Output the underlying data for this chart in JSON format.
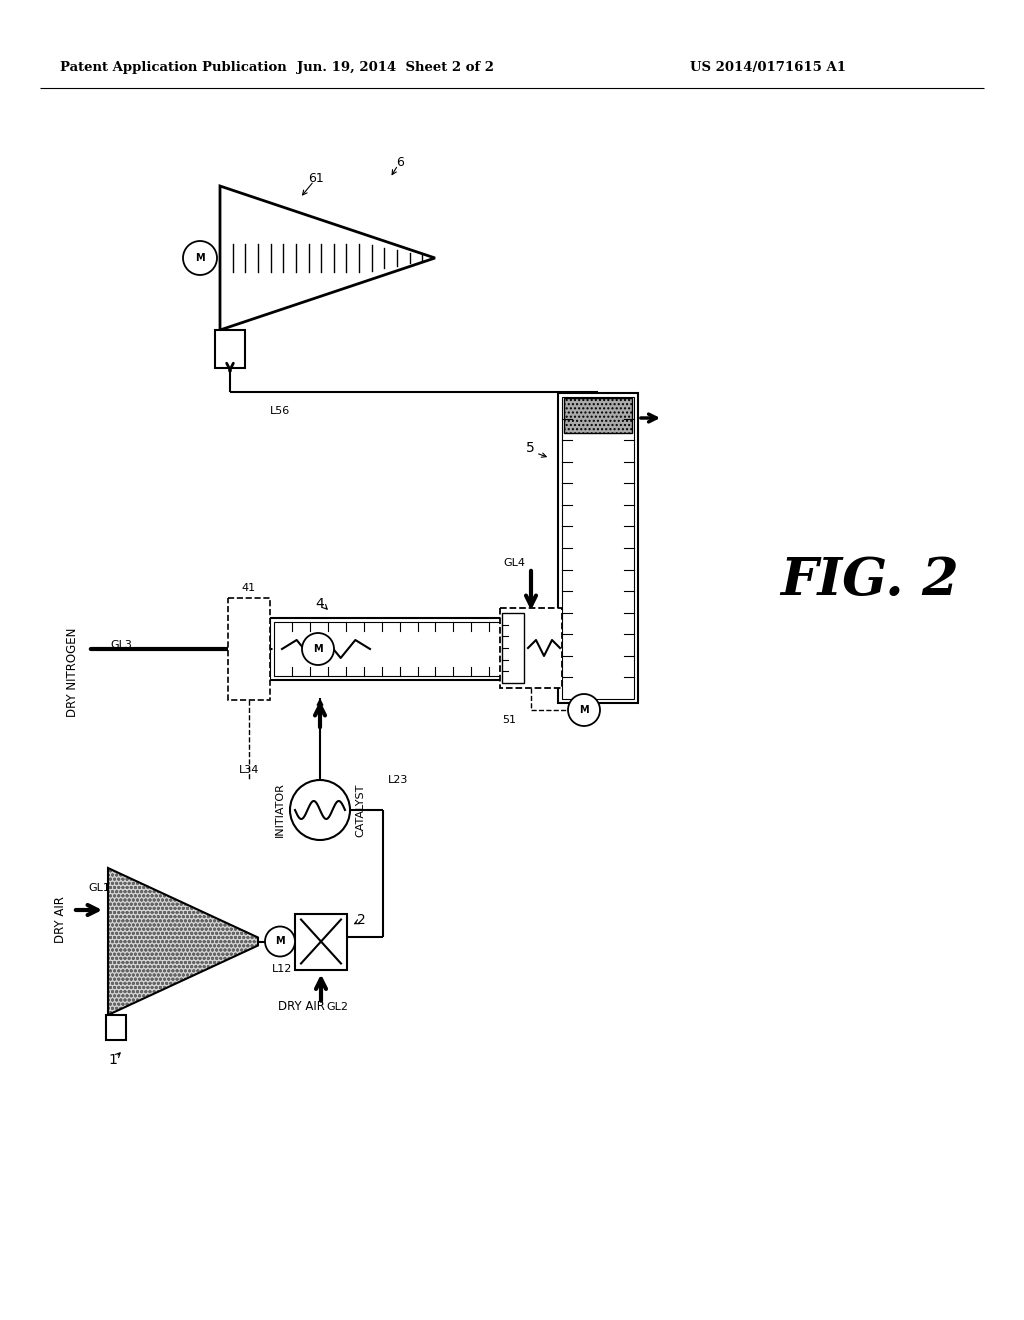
{
  "header_left": "Patent Application Publication",
  "header_center": "Jun. 19, 2014  Sheet 2 of 2",
  "header_right": "US 2014/0171615 A1",
  "bg_color": "#ffffff",
  "fig_label": "FIG. 2"
}
